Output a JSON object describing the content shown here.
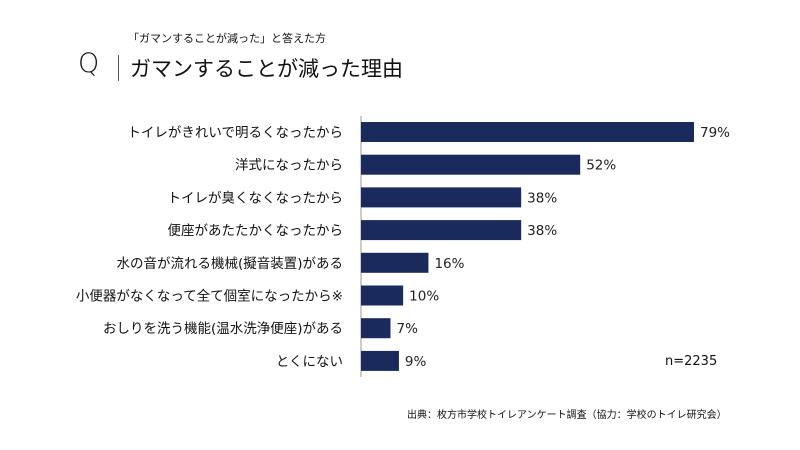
{
  "header": {
    "subtitle": "「ガマンすることが減った」と答えた方",
    "q_mark": "Q",
    "title": "ガマンすることが減った理由"
  },
  "chart_data": {
    "type": "bar",
    "orientation": "horizontal",
    "title": "ガマンすることが減った理由",
    "categories": [
      "トイレがきれいで明るくなったから",
      "洋式になったから",
      "トイレが臭くなくなったから",
      "便座があたたかくなったから",
      "水の音が流れる機械(擬音装置)がある",
      "小便器がなくなって全て個室になったから※",
      "おしりを洗う機能(温水洗浄便座)がある",
      "とくにない"
    ],
    "values": [
      79,
      52,
      38,
      38,
      16,
      10,
      7,
      9
    ],
    "value_labels": [
      "79%",
      "52%",
      "38%",
      "38%",
      "16%",
      "10%",
      "7%",
      "9%"
    ],
    "unit": "%",
    "xlim": [
      0,
      100
    ],
    "grid": false,
    "bar_color": "#1b2a5c",
    "sample_size": "n=2235"
  },
  "source": "出典：枚方市学校トイレアンケート調査（協力：学校のトイレ研究会）"
}
